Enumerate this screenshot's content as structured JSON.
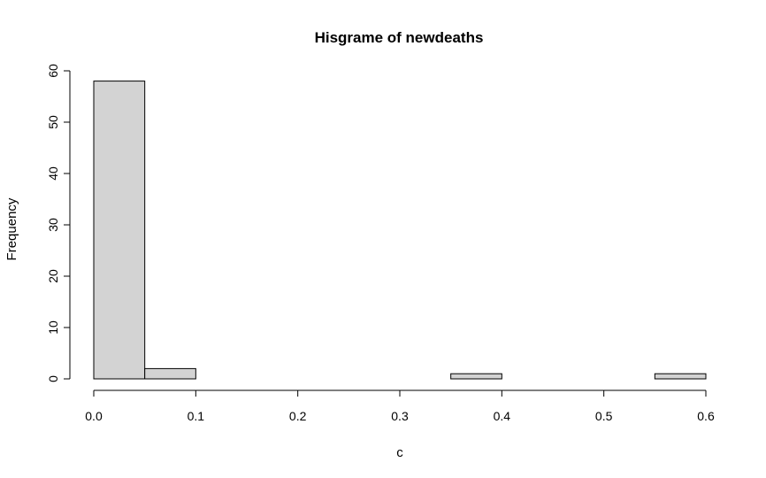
{
  "chart_data": {
    "type": "bar",
    "title": "Hisgrame of newdeaths",
    "xlabel": "c",
    "ylabel": "Frequency",
    "xlim": [
      0,
      0.6
    ],
    "ylim": [
      0,
      60
    ],
    "x_ticks": [
      "0.0",
      "0.1",
      "0.2",
      "0.3",
      "0.4",
      "0.5",
      "0.6"
    ],
    "y_ticks": [
      "0",
      "10",
      "20",
      "30",
      "40",
      "50",
      "60"
    ],
    "bins": [
      {
        "start": 0.0,
        "end": 0.05,
        "count": 58
      },
      {
        "start": 0.05,
        "end": 0.1,
        "count": 2
      },
      {
        "start": 0.1,
        "end": 0.15,
        "count": 0
      },
      {
        "start": 0.15,
        "end": 0.2,
        "count": 0
      },
      {
        "start": 0.2,
        "end": 0.25,
        "count": 0
      },
      {
        "start": 0.25,
        "end": 0.3,
        "count": 0
      },
      {
        "start": 0.3,
        "end": 0.35,
        "count": 0
      },
      {
        "start": 0.35,
        "end": 0.4,
        "count": 1
      },
      {
        "start": 0.4,
        "end": 0.45,
        "count": 0
      },
      {
        "start": 0.45,
        "end": 0.5,
        "count": 0
      },
      {
        "start": 0.5,
        "end": 0.55,
        "count": 0
      },
      {
        "start": 0.55,
        "end": 0.6,
        "count": 1
      }
    ],
    "bar_color": "#d3d3d3",
    "grid": false,
    "legend": "none"
  }
}
